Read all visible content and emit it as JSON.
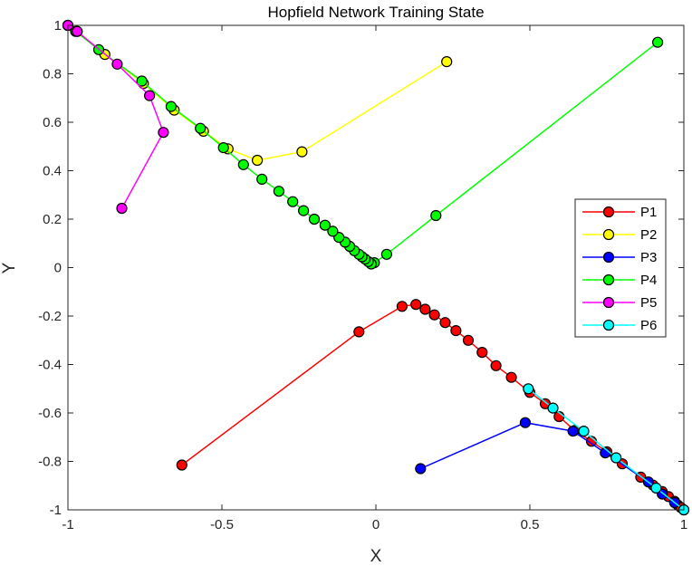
{
  "chart_data": {
    "type": "line",
    "title": "Hopfield Network Training State",
    "xlabel": "X",
    "ylabel": "Y",
    "xlim": [
      -1,
      1
    ],
    "ylim": [
      -1,
      1
    ],
    "xticks": [
      -1,
      -0.5,
      0,
      0.5,
      1
    ],
    "xtick_labels": [
      "-1",
      "-0.5",
      "0",
      "0.5",
      "1"
    ],
    "yticks": [
      -1,
      -0.8,
      -0.6,
      -0.4,
      -0.2,
      0,
      0.2,
      0.4,
      0.6,
      0.8,
      1
    ],
    "ytick_labels": [
      "-1",
      "-0.8",
      "-0.6",
      "-0.4",
      "-0.2",
      "0",
      "0.2",
      "0.4",
      "0.6",
      "0.8",
      "1"
    ],
    "grid": false,
    "legend_position": "right",
    "series": [
      {
        "name": "P1",
        "color": "#ff0000",
        "points": [
          [
            -0.63,
            -0.815
          ],
          [
            -0.055,
            -0.265
          ],
          [
            0.085,
            -0.16
          ],
          [
            0.13,
            -0.152
          ],
          [
            0.16,
            -0.172
          ],
          [
            0.19,
            -0.195
          ],
          [
            0.225,
            -0.227
          ],
          [
            0.26,
            -0.26
          ],
          [
            0.3,
            -0.3
          ],
          [
            0.345,
            -0.35
          ],
          [
            0.39,
            -0.405
          ],
          [
            0.44,
            -0.453
          ],
          [
            0.5,
            -0.515
          ],
          [
            0.55,
            -0.562
          ],
          [
            0.595,
            -0.615
          ],
          [
            0.645,
            -0.672
          ],
          [
            0.7,
            -0.717
          ],
          [
            0.75,
            -0.76
          ],
          [
            0.8,
            -0.81
          ],
          [
            0.86,
            -0.865
          ],
          [
            0.9,
            -0.898
          ],
          [
            0.93,
            -0.925
          ],
          [
            0.95,
            -0.945
          ],
          [
            0.97,
            -0.965
          ],
          [
            0.98,
            -0.98
          ],
          [
            0.99,
            -0.99
          ]
        ]
      },
      {
        "name": "P2",
        "color": "#ffff00",
        "points": [
          [
            0.23,
            0.85
          ],
          [
            -0.24,
            0.478
          ],
          [
            -0.385,
            0.443
          ],
          [
            -0.48,
            0.49
          ],
          [
            -0.56,
            0.563
          ],
          [
            -0.655,
            0.65
          ],
          [
            -0.755,
            0.76
          ],
          [
            -0.88,
            0.88
          ],
          [
            -0.97,
            0.975
          ],
          [
            -1.0,
            1.0
          ]
        ]
      },
      {
        "name": "P3",
        "color": "#0000ff",
        "points": [
          [
            0.145,
            -0.83
          ],
          [
            0.485,
            -0.64
          ],
          [
            0.64,
            -0.675
          ],
          [
            0.745,
            -0.765
          ],
          [
            0.885,
            -0.885
          ],
          [
            0.93,
            -0.935
          ],
          [
            0.97,
            -0.97
          ],
          [
            1.0,
            -1.0
          ]
        ]
      },
      {
        "name": "P4",
        "color": "#00ff00",
        "points": [
          [
            0.915,
            0.93
          ],
          [
            0.195,
            0.215
          ],
          [
            0.035,
            0.055
          ],
          [
            -0.005,
            0.02
          ],
          [
            -0.015,
            0.015
          ],
          [
            -0.025,
            0.025
          ],
          [
            -0.035,
            0.035
          ],
          [
            -0.045,
            0.045
          ],
          [
            -0.055,
            0.055
          ],
          [
            -0.07,
            0.07
          ],
          [
            -0.085,
            0.088
          ],
          [
            -0.1,
            0.105
          ],
          [
            -0.12,
            0.125
          ],
          [
            -0.14,
            0.15
          ],
          [
            -0.165,
            0.175
          ],
          [
            -0.2,
            0.2
          ],
          [
            -0.235,
            0.235
          ],
          [
            -0.27,
            0.272
          ],
          [
            -0.315,
            0.315
          ],
          [
            -0.37,
            0.365
          ],
          [
            -0.43,
            0.425
          ],
          [
            -0.495,
            0.495
          ],
          [
            -0.57,
            0.575
          ],
          [
            -0.665,
            0.665
          ],
          [
            -0.76,
            0.77
          ],
          [
            -0.9,
            0.9
          ],
          [
            -0.975,
            0.975
          ],
          [
            -1.0,
            1.0
          ]
        ]
      },
      {
        "name": "P5",
        "color": "#ff00ff",
        "points": [
          [
            -0.825,
            0.245
          ],
          [
            -0.69,
            0.558
          ],
          [
            -0.735,
            0.71
          ],
          [
            -0.84,
            0.84
          ],
          [
            -0.97,
            0.975
          ],
          [
            -1.0,
            1.0
          ]
        ]
      },
      {
        "name": "P6",
        "color": "#00ffff",
        "points": [
          [
            0.495,
            -0.5
          ],
          [
            0.575,
            -0.58
          ],
          [
            0.675,
            -0.675
          ],
          [
            0.78,
            -0.785
          ],
          [
            0.91,
            -0.91
          ],
          [
            1.0,
            -1.0
          ]
        ]
      }
    ]
  }
}
